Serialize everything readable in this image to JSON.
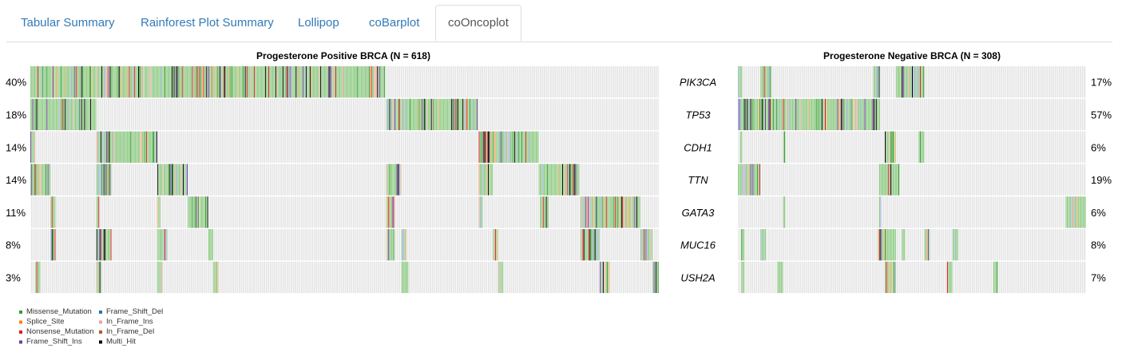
{
  "tabs": {
    "items": [
      {
        "label": "Tabular Summary",
        "active": false
      },
      {
        "label": "Rainforest Plot Summary",
        "active": false
      },
      {
        "label": "Lollipop",
        "active": false
      },
      {
        "label": "coBarplot",
        "active": false
      },
      {
        "label": "coOncoplot",
        "active": true
      }
    ]
  },
  "chart_data": {
    "type": "heatmap",
    "title": "",
    "panels": [
      {
        "title": "Progesterone Positive BRCA  (N = 618)",
        "samples": 618
      },
      {
        "title": "Progesterone Negative BRCA (N = 308)",
        "samples": 308
      }
    ],
    "genes": [
      "PIK3CA",
      "TP53",
      "CDH1",
      "TTN",
      "GATA3",
      "MUC16",
      "USH2A"
    ],
    "left_percent_labels": [
      "40%",
      "18%",
      "14%",
      "14%",
      "11%",
      "8%",
      "3%"
    ],
    "right_percent_labels": [
      "17%",
      "57%",
      "6%",
      "19%",
      "6%",
      "8%",
      "7%"
    ],
    "legend": [
      {
        "label": "Missense_Mutation",
        "color": "#33a02c"
      },
      {
        "label": "Splice_Site",
        "color": "#ff7f00"
      },
      {
        "label": "Nonsense_Mutation",
        "color": "#e31a1c"
      },
      {
        "label": "Frame_Shift_Ins",
        "color": "#6a3d9a"
      },
      {
        "label": "Frame_Shift_Del",
        "color": "#1f78b4"
      },
      {
        "label": "In_Frame_Ins",
        "color": "#fb9a99"
      },
      {
        "label": "In_Frame_Del",
        "color": "#b15928"
      },
      {
        "label": "Multi_Hit",
        "color": "#000000"
      }
    ],
    "background_color": "#e5e5e5",
    "colors": {
      "missense_light": "#8fce84",
      "frameshift_del_light": "#9fb6dd",
      "inframe_light": "#f4b8b2",
      "splice_light": "#f7b36a"
    },
    "mutated_sample_ranges": {
      "positive": [
        {
          "gene": "PIK3CA",
          "ranges": [
            [
              0,
              349
            ]
          ]
        },
        {
          "gene": "TP53",
          "ranges": [
            [
              0,
              65
            ],
            [
              350,
              440
            ]
          ]
        },
        {
          "gene": "CDH1",
          "ranges": [
            [
              0,
              5
            ],
            [
              65,
              125
            ],
            [
              441,
              500
            ]
          ]
        },
        {
          "gene": "TTN",
          "ranges": [
            [
              0,
              20
            ],
            [
              65,
              80
            ],
            [
              125,
              155
            ],
            [
              350,
              365
            ],
            [
              441,
              455
            ],
            [
              500,
              540
            ]
          ]
        },
        {
          "gene": "GATA3",
          "ranges": [
            [
              20,
              25
            ],
            [
              65,
              68
            ],
            [
              125,
              128
            ],
            [
              155,
              175
            ],
            [
              350,
              358
            ],
            [
              441,
              445
            ],
            [
              501,
              510
            ],
            [
              541,
              600
            ]
          ]
        },
        {
          "gene": "MUC16",
          "ranges": [
            [
              20,
              25
            ],
            [
              65,
              80
            ],
            [
              125,
              135
            ],
            [
              175,
              180
            ],
            [
              350,
              358
            ],
            [
              365,
              370
            ],
            [
              455,
              460
            ],
            [
              541,
              560
            ],
            [
              600,
              612
            ]
          ]
        },
        {
          "gene": "USH2A",
          "ranges": [
            [
              5,
              10
            ],
            [
              65,
              70
            ],
            [
              125,
              130
            ],
            [
              180,
              185
            ],
            [
              365,
              372
            ],
            [
              460,
              465
            ],
            [
              560,
              570
            ],
            [
              612,
              618
            ]
          ]
        }
      ],
      "negative": [
        {
          "gene": "PIK3CA",
          "ranges": [
            [
              0,
              4
            ],
            [
              20,
              30
            ],
            [
              120,
              126
            ],
            [
              140,
              165
            ]
          ]
        },
        {
          "gene": "TP53",
          "ranges": [
            [
              0,
              126
            ]
          ]
        },
        {
          "gene": "CDH1",
          "ranges": [
            [
              2,
              4
            ],
            [
              40,
              42
            ],
            [
              130,
              140
            ],
            [
              160,
              165
            ]
          ]
        },
        {
          "gene": "TTN",
          "ranges": [
            [
              0,
              20
            ],
            [
              125,
              143
            ]
          ]
        },
        {
          "gene": "GATA3",
          "ranges": [
            [
              40,
              42
            ],
            [
              125,
              127
            ],
            [
              290,
              308
            ]
          ]
        },
        {
          "gene": "MUC16",
          "ranges": [
            [
              3,
              6
            ],
            [
              20,
              25
            ],
            [
              124,
              140
            ],
            [
              145,
              148
            ],
            [
              165,
              170
            ],
            [
              190,
              195
            ]
          ]
        },
        {
          "gene": "USH2A",
          "ranges": [
            [
              3,
              6
            ],
            [
              35,
              40
            ],
            [
              130,
              140
            ],
            [
              185,
              190
            ],
            [
              226,
              230
            ]
          ]
        }
      ]
    }
  }
}
